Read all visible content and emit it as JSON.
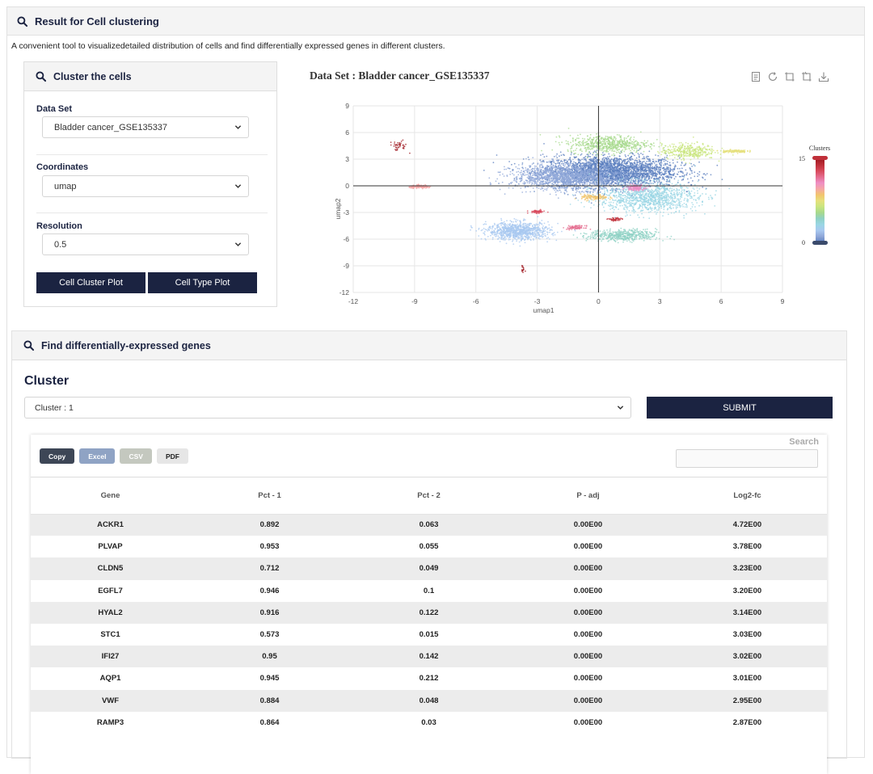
{
  "header": {
    "title": "Result for Cell clustering"
  },
  "description": "A convenient tool to visualizedetailed distribution of cells and find differentially expressed genes in different clusters.",
  "cluster_panel": {
    "title": "Cluster the cells",
    "dataset_label": "Data Set",
    "dataset_value": "Bladder cancer_GSE135337",
    "coordinates_label": "Coordinates",
    "coordinates_value": "umap",
    "resolution_label": "Resolution",
    "resolution_value": "0.5",
    "cluster_plot_btn": "Cell Cluster Plot",
    "type_plot_btn": "Cell Type Plot"
  },
  "chart_data": {
    "type": "scatter",
    "title": "Data Set : Bladder cancer_GSE135337",
    "xlabel": "umap1",
    "ylabel": "umap2",
    "xlim": [
      -12,
      9
    ],
    "ylim": [
      -12,
      9
    ],
    "xticks": [
      "-12",
      "-9",
      "-6",
      "-3",
      "0",
      "3",
      "6",
      "9"
    ],
    "yticks": [
      "9",
      "6",
      "3",
      "0",
      "-3",
      "-6",
      "-9",
      "-12"
    ],
    "legend_title": "Clusters",
    "legend_max": "15",
    "legend_min": "0",
    "colors": [
      "#5b7fbf",
      "#8fa7d8",
      "#a8c8f0",
      "#9ad6e4",
      "#8fd1c4",
      "#a7d98c",
      "#c9e57f",
      "#e6e07c",
      "#f2c56e",
      "#f5a6a6",
      "#ee8ec4",
      "#e46c8f",
      "#d84a5c",
      "#c0303a",
      "#a01a22"
    ],
    "clusters": [
      {
        "id": 0,
        "cx": 0.6,
        "cy": 1.6,
        "sx": 3.0,
        "sy": 1.6,
        "n": 2800
      },
      {
        "id": 1,
        "cx": -1.5,
        "cy": 1.0,
        "sx": 2.5,
        "sy": 1.3,
        "n": 1500
      },
      {
        "id": 2,
        "cx": -3.9,
        "cy": -5.1,
        "sx": 1.4,
        "sy": 0.9,
        "n": 900
      },
      {
        "id": 3,
        "cx": 2.4,
        "cy": -1.3,
        "sx": 2.2,
        "sy": 1.5,
        "n": 1100
      },
      {
        "id": 4,
        "cx": 1.2,
        "cy": -5.6,
        "sx": 1.5,
        "sy": 0.6,
        "n": 500
      },
      {
        "id": 5,
        "cx": 0.5,
        "cy": 4.7,
        "sx": 1.8,
        "sy": 0.9,
        "n": 600
      },
      {
        "id": 6,
        "cx": 4.4,
        "cy": 3.9,
        "sx": 1.2,
        "sy": 0.8,
        "n": 350
      },
      {
        "id": 7,
        "cx": 6.6,
        "cy": 3.9,
        "sx": 0.6,
        "sy": 0.15,
        "n": 120
      },
      {
        "id": 8,
        "cx": -0.2,
        "cy": -1.3,
        "sx": 0.6,
        "sy": 0.3,
        "n": 120
      },
      {
        "id": 9,
        "cx": -8.7,
        "cy": -0.1,
        "sx": 0.5,
        "sy": 0.15,
        "n": 150
      },
      {
        "id": 10,
        "cx": 1.8,
        "cy": -0.2,
        "sx": 0.4,
        "sy": 0.3,
        "n": 140
      },
      {
        "id": 11,
        "cx": -1.1,
        "cy": -4.7,
        "sx": 0.4,
        "sy": 0.2,
        "n": 80
      },
      {
        "id": 12,
        "cx": -3.0,
        "cy": -2.9,
        "sx": 0.35,
        "sy": 0.15,
        "n": 60
      },
      {
        "id": 13,
        "cx": 0.8,
        "cy": -3.8,
        "sx": 0.3,
        "sy": 0.2,
        "n": 50
      },
      {
        "id": 14,
        "cx": -9.8,
        "cy": 4.5,
        "sx": 0.4,
        "sy": 0.5,
        "n": 40
      },
      {
        "id": 14,
        "cx": -3.7,
        "cy": -9.4,
        "sx": 0.05,
        "sy": 0.4,
        "n": 15
      }
    ]
  },
  "deg_panel": {
    "title": "Find differentially-expressed genes",
    "cluster_heading": "Cluster",
    "cluster_value": "Cluster : 1",
    "submit_label": "SUBMIT",
    "export": {
      "copy": "Copy",
      "excel": "Excel",
      "csv": "CSV",
      "pdf": "PDF"
    },
    "search_label": "Search",
    "columns": [
      "Gene",
      "Pct - 1",
      "Pct - 2",
      "P - adj",
      "Log2-fc"
    ],
    "rows": [
      [
        "ACKR1",
        "0.892",
        "0.063",
        "0.00E00",
        "4.72E00"
      ],
      [
        "PLVAP",
        "0.953",
        "0.055",
        "0.00E00",
        "3.78E00"
      ],
      [
        "CLDN5",
        "0.712",
        "0.049",
        "0.00E00",
        "3.23E00"
      ],
      [
        "EGFL7",
        "0.946",
        "0.1",
        "0.00E00",
        "3.20E00"
      ],
      [
        "HYAL2",
        "0.916",
        "0.122",
        "0.00E00",
        "3.14E00"
      ],
      [
        "STC1",
        "0.573",
        "0.015",
        "0.00E00",
        "3.03E00"
      ],
      [
        "IFI27",
        "0.95",
        "0.142",
        "0.00E00",
        "3.02E00"
      ],
      [
        "AQP1",
        "0.945",
        "0.212",
        "0.00E00",
        "3.01E00"
      ],
      [
        "VWF",
        "0.884",
        "0.048",
        "0.00E00",
        "2.95E00"
      ],
      [
        "RAMP3",
        "0.864",
        "0.03",
        "0.00E00",
        "2.87E00"
      ]
    ]
  }
}
